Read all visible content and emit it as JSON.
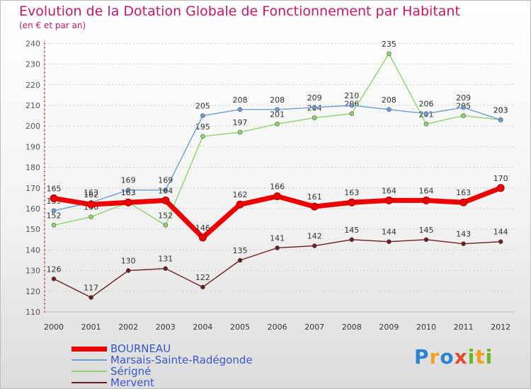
{
  "chart_data": {
    "type": "line",
    "title": "Evolution de la Dotation Globale de Fonctionnement par Habitant",
    "subtitle": "(en € et par an)",
    "xlabel": "",
    "ylabel": "",
    "ylim": [
      110,
      240
    ],
    "y_ticks": [
      110,
      120,
      130,
      140,
      150,
      160,
      170,
      180,
      190,
      200,
      210,
      220,
      230,
      240
    ],
    "categories": [
      "2000",
      "2001",
      "2002",
      "2003",
      "2004",
      "2005",
      "2006",
      "2007",
      "2008",
      "2009",
      "2010",
      "2011",
      "2012"
    ],
    "grid": "horizontal dashed",
    "legend_position": "bottom-left",
    "series": [
      {
        "name": "Mervent",
        "color": "#6b1c1c",
        "values": [
          126,
          117,
          130,
          131,
          122,
          135,
          141,
          142,
          145,
          144,
          145,
          143,
          144
        ]
      },
      {
        "name": "Sérigné",
        "color": "#8fd46a",
        "values": [
          152,
          156,
          163,
          152,
          195,
          197,
          201,
          204,
          206,
          235,
          201,
          205,
          203
        ]
      },
      {
        "name": "Marsais-Sainte-Radégonde",
        "color": "#6a9ed4",
        "values": [
          159,
          163,
          169,
          169,
          205,
          208,
          208,
          209,
          210,
          208,
          206,
          209,
          203
        ]
      },
      {
        "name": "BOURNEAU",
        "color": "#ee0000",
        "values": [
          165,
          162,
          163,
          164,
          146,
          162,
          166,
          161,
          163,
          164,
          164,
          163,
          170
        ]
      }
    ],
    "legend_order": [
      "BOURNEAU",
      "Marsais-Sainte-Radégonde",
      "Sérigné",
      "Mervent"
    ]
  },
  "logo": {
    "text": "Proxiti",
    "parts": [
      "P",
      "r",
      "o",
      "x",
      "i",
      "t",
      "i"
    ]
  },
  "colors": {
    "title": "#c2186c",
    "legend_text": "#3a56c8",
    "axis": "#555555",
    "grid": "#cccccc"
  }
}
